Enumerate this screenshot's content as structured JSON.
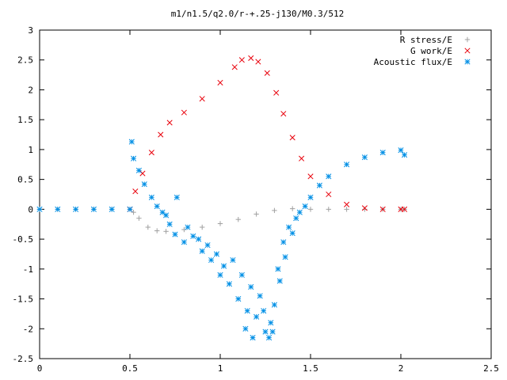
{
  "chart_data": {
    "type": "scatter",
    "title": "m1/n1.5/q2.0/r-+.25-j130/M0.3/512",
    "xlabel": "",
    "ylabel": "",
    "xlim": [
      0,
      2.5
    ],
    "ylim": [
      -2.5,
      3
    ],
    "x_ticks": [
      "0",
      "0.5",
      "1",
      "1.5",
      "2",
      "2.5"
    ],
    "y_ticks": [
      "-2.5",
      "-2",
      "-1.5",
      "-1",
      "-0.5",
      "0",
      "0.5",
      "1",
      "1.5",
      "2",
      "2.5",
      "3"
    ],
    "grid": false,
    "legend_position": "top-right",
    "series": [
      {
        "name": "R stress/E",
        "marker": "plus",
        "color": "#a0a0a0",
        "points": [
          [
            0.0,
            0.0
          ],
          [
            0.1,
            0.0
          ],
          [
            0.2,
            0.0
          ],
          [
            0.3,
            0.0
          ],
          [
            0.4,
            0.0
          ],
          [
            0.5,
            0.0
          ],
          [
            0.52,
            -0.05
          ],
          [
            0.55,
            -0.15
          ],
          [
            0.6,
            -0.3
          ],
          [
            0.65,
            -0.36
          ],
          [
            0.7,
            -0.37
          ],
          [
            0.8,
            -0.34
          ],
          [
            0.9,
            -0.3
          ],
          [
            1.0,
            -0.24
          ],
          [
            1.1,
            -0.17
          ],
          [
            1.2,
            -0.08
          ],
          [
            1.3,
            -0.02
          ],
          [
            1.4,
            0.01
          ],
          [
            1.5,
            0.0
          ],
          [
            1.6,
            0.0
          ],
          [
            1.7,
            0.0
          ],
          [
            1.8,
            0.0
          ],
          [
            1.9,
            0.0
          ],
          [
            2.0,
            0.0
          ],
          [
            2.02,
            0.0
          ]
        ]
      },
      {
        "name": "G work/E",
        "marker": "cross",
        "color": "#e8000b",
        "points": [
          [
            0.5,
            0.0
          ],
          [
            0.53,
            0.3
          ],
          [
            0.57,
            0.6
          ],
          [
            0.62,
            0.95
          ],
          [
            0.67,
            1.25
          ],
          [
            0.72,
            1.45
          ],
          [
            0.8,
            1.62
          ],
          [
            0.9,
            1.85
          ],
          [
            1.0,
            2.12
          ],
          [
            1.08,
            2.38
          ],
          [
            1.12,
            2.5
          ],
          [
            1.17,
            2.53
          ],
          [
            1.21,
            2.47
          ],
          [
            1.26,
            2.28
          ],
          [
            1.31,
            1.95
          ],
          [
            1.35,
            1.6
          ],
          [
            1.4,
            1.2
          ],
          [
            1.45,
            0.85
          ],
          [
            1.5,
            0.55
          ],
          [
            1.6,
            0.25
          ],
          [
            1.7,
            0.08
          ],
          [
            1.8,
            0.02
          ],
          [
            1.9,
            0.0
          ],
          [
            2.0,
            0.0
          ],
          [
            2.02,
            0.0
          ]
        ]
      },
      {
        "name": "Acoustic flux/E",
        "marker": "star",
        "color": "#008fe5",
        "points": [
          [
            0.0,
            0.0
          ],
          [
            0.1,
            0.0
          ],
          [
            0.2,
            0.0
          ],
          [
            0.3,
            0.0
          ],
          [
            0.4,
            0.0
          ],
          [
            0.5,
            0.0
          ],
          [
            0.51,
            1.13
          ],
          [
            0.52,
            0.85
          ],
          [
            0.55,
            0.65
          ],
          [
            0.58,
            0.42
          ],
          [
            0.62,
            0.2
          ],
          [
            0.65,
            0.05
          ],
          [
            0.68,
            -0.05
          ],
          [
            0.72,
            -0.25
          ],
          [
            0.75,
            -0.42
          ],
          [
            0.8,
            -0.55
          ],
          [
            0.85,
            -0.45
          ],
          [
            0.9,
            -0.7
          ],
          [
            0.95,
            -0.85
          ],
          [
            1.0,
            -1.1
          ],
          [
            1.05,
            -1.25
          ],
          [
            1.1,
            -1.5
          ],
          [
            1.15,
            -1.7
          ],
          [
            1.2,
            -1.8
          ],
          [
            1.25,
            -2.05
          ],
          [
            1.27,
            -2.15
          ],
          [
            1.3,
            -1.6
          ],
          [
            1.33,
            -1.2
          ],
          [
            1.36,
            -0.8
          ],
          [
            1.4,
            -0.4
          ],
          [
            1.44,
            -0.05
          ],
          [
            1.47,
            0.05
          ],
          [
            1.5,
            0.2
          ],
          [
            1.55,
            0.4
          ],
          [
            1.6,
            0.55
          ],
          [
            1.7,
            0.75
          ],
          [
            1.8,
            0.87
          ],
          [
            1.9,
            0.95
          ],
          [
            2.0,
            0.99
          ],
          [
            2.02,
            0.91
          ],
          [
            0.7,
            -0.1
          ],
          [
            0.76,
            0.2
          ],
          [
            0.82,
            -0.3
          ],
          [
            0.88,
            -0.5
          ],
          [
            0.93,
            -0.6
          ],
          [
            0.98,
            -0.75
          ],
          [
            1.02,
            -0.95
          ],
          [
            1.07,
            -0.85
          ],
          [
            1.12,
            -1.1
          ],
          [
            1.17,
            -1.3
          ],
          [
            1.22,
            -1.45
          ],
          [
            1.24,
            -1.7
          ],
          [
            1.28,
            -1.9
          ],
          [
            1.32,
            -1.0
          ],
          [
            1.35,
            -0.55
          ],
          [
            1.38,
            -0.3
          ],
          [
            1.42,
            -0.15
          ],
          [
            1.14,
            -2.0
          ],
          [
            1.18,
            -2.15
          ],
          [
            1.29,
            -2.05
          ]
        ]
      }
    ]
  }
}
